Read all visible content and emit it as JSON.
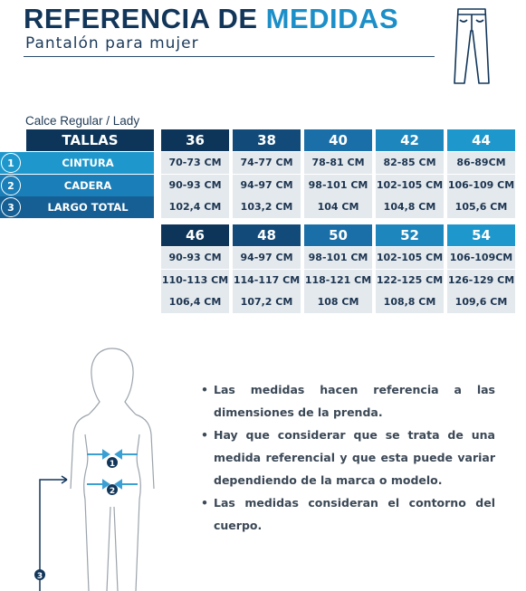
{
  "header": {
    "title_part1": "REFERENCIA DE",
    "title_part2": "MEDIDAS",
    "subtitle": "Pantalón para mujer",
    "fit": "Calce Regular / Lady"
  },
  "table": {
    "header_label": "TALLAS",
    "rows": [
      {
        "num": "1",
        "label": "CINTURA"
      },
      {
        "num": "2",
        "label": "CADERA"
      },
      {
        "num": "3",
        "label": "LARGO TOTAL"
      }
    ],
    "group1": {
      "sizes": [
        "36",
        "38",
        "40",
        "42",
        "44"
      ],
      "values": [
        [
          "70-73 CM",
          "74-77 CM",
          "78-81 CM",
          "82-85 CM",
          "86-89CM"
        ],
        [
          "90-93 CM",
          "94-97 CM",
          "98-101 CM",
          "102-105 CM",
          "106-109 CM"
        ],
        [
          "102,4 CM",
          "103,2 CM",
          "104 CM",
          "104,8 CM",
          "105,6 CM"
        ]
      ]
    },
    "group2": {
      "sizes": [
        "46",
        "48",
        "50",
        "52",
        "54"
      ],
      "values": [
        [
          "90-93 CM",
          "94-97 CM",
          "98-101 CM",
          "102-105 CM",
          "106-109CM"
        ],
        [
          "110-113 CM",
          "114-117 CM",
          "118-121 CM",
          "122-125 CM",
          "126-129 CM"
        ],
        [
          "106,4 CM",
          "107,2 CM",
          "108 CM",
          "108,8 CM",
          "109,6 CM"
        ]
      ]
    }
  },
  "notes": [
    "Las medidas hacen referencia a las dimensiones de la prenda.",
    "Hay que considerar que se trata de una medida referencial y que esta puede variar dependiendo de la marca o modelo.",
    "Las medidas consideran el contorno del cuerpo."
  ],
  "figure_markers": [
    "1",
    "2",
    "3"
  ],
  "colors": {
    "dark_navy": "#0d3559",
    "mid_blue": "#1a6fa8",
    "light_blue": "#1e98cc",
    "cell_bg": "#e4e9ee",
    "title_accent": "#1c8fc8"
  },
  "icons": {
    "pants": "pants-icon",
    "body": "body-silhouette"
  }
}
